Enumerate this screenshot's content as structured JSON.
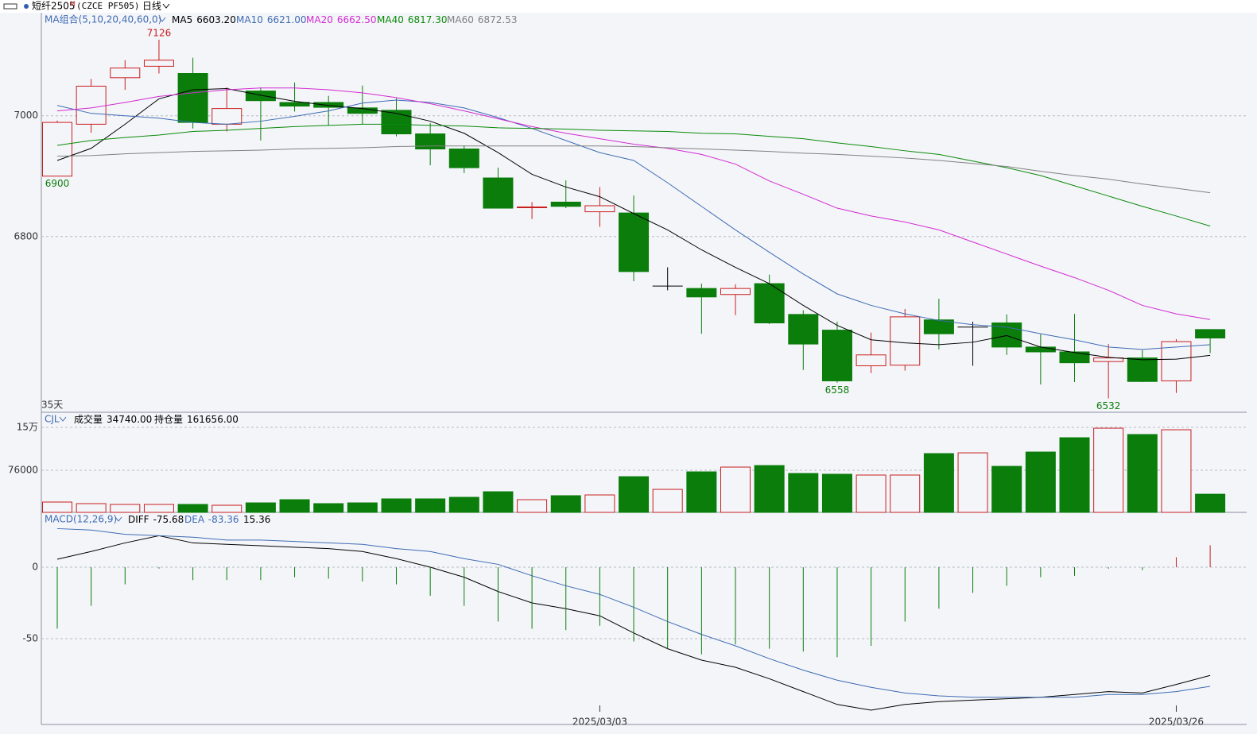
{
  "header": {
    "symbol": "短纤2505",
    "marker": "M",
    "code": "(CZCE PF505)",
    "period": "日线"
  },
  "chart_data": [
    {
      "type": "candlestick",
      "title": "MA组合(5,10,20,40,60,0)",
      "range_label": "35天",
      "up_color": "#c81e1e",
      "down_color": "#0a7d0a",
      "flat_color": "#000000",
      "open": [
        6900,
        6986,
        7063,
        7082,
        7070,
        6986,
        7041,
        7022,
        7022,
        7013,
        7009,
        6970,
        6945,
        6897,
        6848,
        6857,
        6841,
        6839,
        6718,
        6714,
        6704,
        6722,
        6671,
        6645,
        6586,
        6587,
        6662,
        6650,
        6657,
        6617,
        6609,
        6593,
        6599,
        6561,
        6646
      ],
      "high": [
        6992,
        7061,
        7092,
        7126,
        7096,
        7047,
        7047,
        7055,
        7033,
        7050,
        7029,
        6988,
        6951,
        6914,
        6857,
        6893,
        6882,
        6868,
        6749,
        6722,
        6721,
        6737,
        6678,
        6659,
        6641,
        6680,
        6697,
        6659,
        6671,
        6638,
        6672,
        6622,
        6612,
        6630,
        6646
      ],
      "low": [
        6900,
        6972,
        7043,
        7070,
        6979,
        6974,
        6959,
        7007,
        6984,
        6986,
        6966,
        6918,
        6905,
        6847,
        6829,
        6847,
        6816,
        6726,
        6711,
        6639,
        6670,
        6655,
        6579,
        6558,
        6574,
        6578,
        6613,
        6586,
        6604,
        6555,
        6559,
        6532,
        6559,
        6541,
        6607
      ],
      "close": [
        6989,
        7049,
        7079,
        7092,
        6989,
        7012,
        7025,
        7016,
        7014,
        7004,
        6970,
        6945,
        6914,
        6847,
        6849,
        6850,
        6851,
        6742,
        6718,
        6700,
        6714,
        6657,
        6622,
        6561,
        6604,
        6667,
        6639,
        6650,
        6617,
        6609,
        6591,
        6599,
        6560,
        6626,
        6632
      ],
      "series": [
        {
          "name": "MA5",
          "color": "#000000",
          "value_label": "6603.20",
          "values": [
            6926,
            6946,
            6986,
            7028,
            7043,
            7045,
            7034,
            7024,
            7017,
            7012,
            7004,
            6991,
            6971,
            6939,
            6903,
            6882,
            6866,
            6838,
            6811,
            6778,
            6749,
            6722,
            6686,
            6653,
            6629,
            6624,
            6621,
            6625,
            6636,
            6617,
            6608,
            6600,
            6596,
            6597,
            6603.2
          ]
        },
        {
          "name": "MA10",
          "color": "#3d6bb3",
          "value_label": "6621.00",
          "values": [
            7017,
            7004,
            7000,
            6996,
            6989,
            6986,
            6991,
            6999,
            7008,
            7021,
            7026,
            7022,
            7013,
            6997,
            6979,
            6959,
            6939,
            6926,
            6889,
            6850,
            6811,
            6774,
            6738,
            6705,
            6686,
            6672,
            6661,
            6654,
            6650,
            6639,
            6629,
            6617,
            6613,
            6617,
            6621
          ]
        },
        {
          "name": "MA20",
          "color": "#d22ad2",
          "value_label": "6662.50",
          "values": [
            7008,
            7013,
            7022,
            7032,
            7038,
            7043,
            7046,
            7046,
            7043,
            7038,
            7030,
            7020,
            7008,
            6995,
            6982,
            6971,
            6962,
            6953,
            6946,
            6936,
            6920,
            6892,
            6870,
            6847,
            6834,
            6824,
            6811,
            6791,
            6771,
            6751,
            6732,
            6711,
            6686,
            6672,
            6662.5
          ]
        },
        {
          "name": "MA40",
          "color": "#0a8a0a",
          "value_label": "6817.30",
          "values": [
            6951,
            6959,
            6964,
            6968,
            6974,
            6976,
            6979,
            6982,
            6984,
            6986,
            6986,
            6984,
            6983,
            6980,
            6979,
            6978,
            6976,
            6975,
            6974,
            6971,
            6970,
            6966,
            6962,
            6955,
            6949,
            6942,
            6936,
            6925,
            6914,
            6901,
            6884,
            6867,
            6850,
            6834,
            6817.3
          ]
        },
        {
          "name": "MA60",
          "color": "#808080",
          "value_label": "6872.53",
          "values": [
            6933,
            6934,
            6937,
            6939,
            6941,
            6942,
            6943,
            6945,
            6946,
            6947,
            6949,
            6950,
            6950,
            6950,
            6950,
            6950,
            6950,
            6949,
            6947,
            6945,
            6943,
            6941,
            6938,
            6936,
            6933,
            6930,
            6926,
            6921,
            6916,
            6908,
            6901,
            6895,
            6887,
            6880,
            6872.53
          ]
        }
      ],
      "annotations": [
        {
          "index": 3,
          "value": 7126,
          "position": "above"
        },
        {
          "index": 0,
          "value": 6900,
          "position": "below"
        },
        {
          "index": 23,
          "value": 6558,
          "position": "below"
        },
        {
          "index": 31,
          "value": 6532,
          "position": "below"
        }
      ],
      "ylim": [
        6509,
        7168
      ],
      "yticks": [
        6800,
        7000
      ],
      "grid": true
    },
    {
      "type": "bar",
      "title": "CJL",
      "series": [
        {
          "name": "成交量",
          "value_label": "34740.00",
          "values": [
            21200,
            18500,
            17100,
            17100,
            17100,
            15700,
            19800,
            25300,
            18500,
            19800,
            26700,
            26700,
            29400,
            39000,
            25300,
            32200,
            33500,
            65000,
            43100,
            73300,
            81500,
            84200,
            70500,
            69200,
            67800,
            67800,
            104800,
            106100,
            82800,
            107500,
            132200,
            148600,
            137700,
            145900,
            34740
          ]
        }
      ],
      "info": [
        {
          "name": "持仓量",
          "value_label": "161656.00"
        }
      ],
      "ylim": [
        3400,
        174700
      ],
      "yticks": [
        76000,
        {
          "value": 150000,
          "label": "15万"
        }
      ],
      "grid": true
    },
    {
      "type": "macd",
      "title": "MACD(12,26,9)",
      "up_color": "#c81e1e",
      "down_color": "#0a7d0a",
      "categories": [
        null,
        null,
        null,
        null,
        null,
        null,
        null,
        null,
        null,
        null,
        null,
        null,
        null,
        null,
        null,
        null,
        "2025/03/03",
        null,
        null,
        null,
        null,
        null,
        null,
        null,
        null,
        null,
        null,
        null,
        null,
        null,
        null,
        null,
        null,
        "2025/03/26",
        null
      ],
      "series": [
        {
          "name": "DIFF",
          "kind": "line",
          "color": "#000000",
          "value_label": "-75.68",
          "values": [
            5.6,
            11,
            17,
            22,
            17,
            16,
            15,
            14,
            13,
            11,
            6,
            0,
            -7,
            -17,
            -25,
            -29,
            -34,
            -46,
            -57,
            -65,
            -70,
            -78,
            -87,
            -96,
            -100,
            -96,
            -94,
            -93,
            -92,
            -91,
            -89,
            -87,
            -88,
            -82,
            -75.68
          ]
        },
        {
          "name": "DEA",
          "kind": "line",
          "color": "#3d6bb3",
          "value_label": "-83.36",
          "values": [
            27,
            26,
            23,
            22,
            21,
            19,
            19,
            18,
            17,
            16,
            13,
            11,
            6,
            2,
            -6,
            -13,
            -19,
            -28,
            -38,
            -47,
            -55,
            -64,
            -72,
            -79,
            -84,
            -88,
            -90,
            -91,
            -91,
            -91,
            -91,
            -89,
            -89,
            -87,
            -83.36
          ]
        },
        {
          "kind": "bar",
          "value_label": "15.36",
          "values": [
            -43,
            -27,
            -12,
            -1,
            -9,
            -9,
            -9,
            -7,
            -8,
            -10,
            -12,
            -20,
            -27,
            -38,
            -43,
            -44,
            -41,
            -52,
            -57,
            -61,
            -54,
            -57,
            -59,
            -63,
            -55,
            -38,
            -29,
            -18,
            -13,
            -7,
            -6,
            -1,
            -2,
            7,
            15.36
          ]
        }
      ],
      "ylim": [
        -110,
        37.8
      ],
      "yticks": [
        -50,
        0
      ],
      "grid": true
    }
  ]
}
